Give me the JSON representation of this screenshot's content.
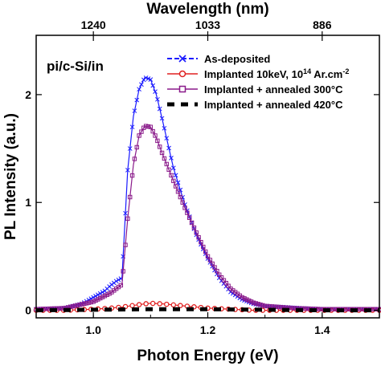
{
  "chart_data": {
    "type": "line",
    "title": "",
    "annotation": "pi/c-Si/in",
    "xlabel": "Photon Energy (eV)",
    "ylabel": "PL Intensity (a.u.)",
    "top_xlabel": "Wavelength (nm)",
    "xlim": [
      0.9,
      1.5
    ],
    "ylim": [
      -0.07,
      2.55
    ],
    "x_ticks": [
      1.0,
      1.2,
      1.4
    ],
    "x_tick_labels": [
      "1.0",
      "1.2",
      "1.4"
    ],
    "y_ticks": [
      0,
      1,
      2
    ],
    "y_tick_labels": [
      "0",
      "1",
      "2"
    ],
    "top_ticks": [
      {
        "energy": 1.0,
        "label": "1240"
      },
      {
        "energy": 1.2,
        "label": "1033"
      },
      {
        "energy": 1.4,
        "label": "886"
      }
    ],
    "legend_position": "top-right",
    "grid": false,
    "series": [
      {
        "name": "As-deposited",
        "color": "#1a1aff",
        "style": "dash-cross",
        "x": [
          0.9,
          0.95,
          0.98,
          1.0,
          1.02,
          1.03,
          1.04,
          1.05,
          1.055,
          1.06,
          1.07,
          1.08,
          1.09,
          1.1,
          1.11,
          1.12,
          1.13,
          1.14,
          1.16,
          1.18,
          1.2,
          1.22,
          1.24,
          1.26,
          1.28,
          1.3,
          1.33,
          1.36,
          1.4,
          1.45,
          1.5
        ],
        "y": [
          0.01,
          0.02,
          0.06,
          0.12,
          0.18,
          0.23,
          0.27,
          0.3,
          0.8,
          1.3,
          1.8,
          2.05,
          2.16,
          2.14,
          2.0,
          1.78,
          1.55,
          1.32,
          0.98,
          0.7,
          0.48,
          0.3,
          0.17,
          0.1,
          0.06,
          0.04,
          0.03,
          0.02,
          0.01,
          0.01,
          0.01
        ]
      },
      {
        "name": "Implanted 10keV, 10^14 Ar.cm^-2",
        "color": "#e02020",
        "style": "circle",
        "x": [
          0.9,
          0.95,
          1.0,
          1.03,
          1.05,
          1.07,
          1.09,
          1.1,
          1.12,
          1.14,
          1.16,
          1.18,
          1.2,
          1.22,
          1.24,
          1.26,
          1.28,
          1.3,
          1.35,
          1.4,
          1.5
        ],
        "y": [
          0.0,
          0.0,
          0.01,
          0.02,
          0.03,
          0.045,
          0.06,
          0.065,
          0.06,
          0.05,
          0.04,
          0.03,
          0.02,
          0.015,
          0.01,
          0.005,
          0.0,
          0.0,
          0.0,
          0.0,
          0.0
        ]
      },
      {
        "name": "Implanted + annealed 300°C",
        "color": "#8a1a8a",
        "style": "square",
        "x": [
          0.9,
          0.95,
          1.0,
          1.03,
          1.05,
          1.06,
          1.07,
          1.08,
          1.09,
          1.1,
          1.11,
          1.12,
          1.14,
          1.16,
          1.18,
          1.2,
          1.22,
          1.24,
          1.26,
          1.28,
          1.3,
          1.35,
          1.4,
          1.45,
          1.5
        ],
        "y": [
          0.01,
          0.02,
          0.08,
          0.16,
          0.24,
          0.85,
          1.35,
          1.62,
          1.71,
          1.7,
          1.6,
          1.46,
          1.2,
          0.95,
          0.72,
          0.5,
          0.33,
          0.2,
          0.12,
          0.07,
          0.04,
          0.02,
          0.01,
          0.01,
          0.01
        ]
      },
      {
        "name": "Implanted + annealed 420°C",
        "color": "#000000",
        "style": "dash",
        "x": [
          0.9,
          1.0,
          1.1,
          1.2,
          1.3,
          1.4,
          1.5
        ],
        "y": [
          0.0,
          0.005,
          0.01,
          0.01,
          0.005,
          0.0,
          0.0
        ]
      }
    ],
    "legend_entries": [
      {
        "text": "As-deposited"
      },
      {
        "text": "Implanted 10keV, 10",
        "sup1": "14",
        "mid": " Ar.cm",
        "sup2": "-2"
      },
      {
        "text": "Implanted + annealed 300°C"
      },
      {
        "text": "Implanted + annealed 420°C"
      }
    ]
  }
}
